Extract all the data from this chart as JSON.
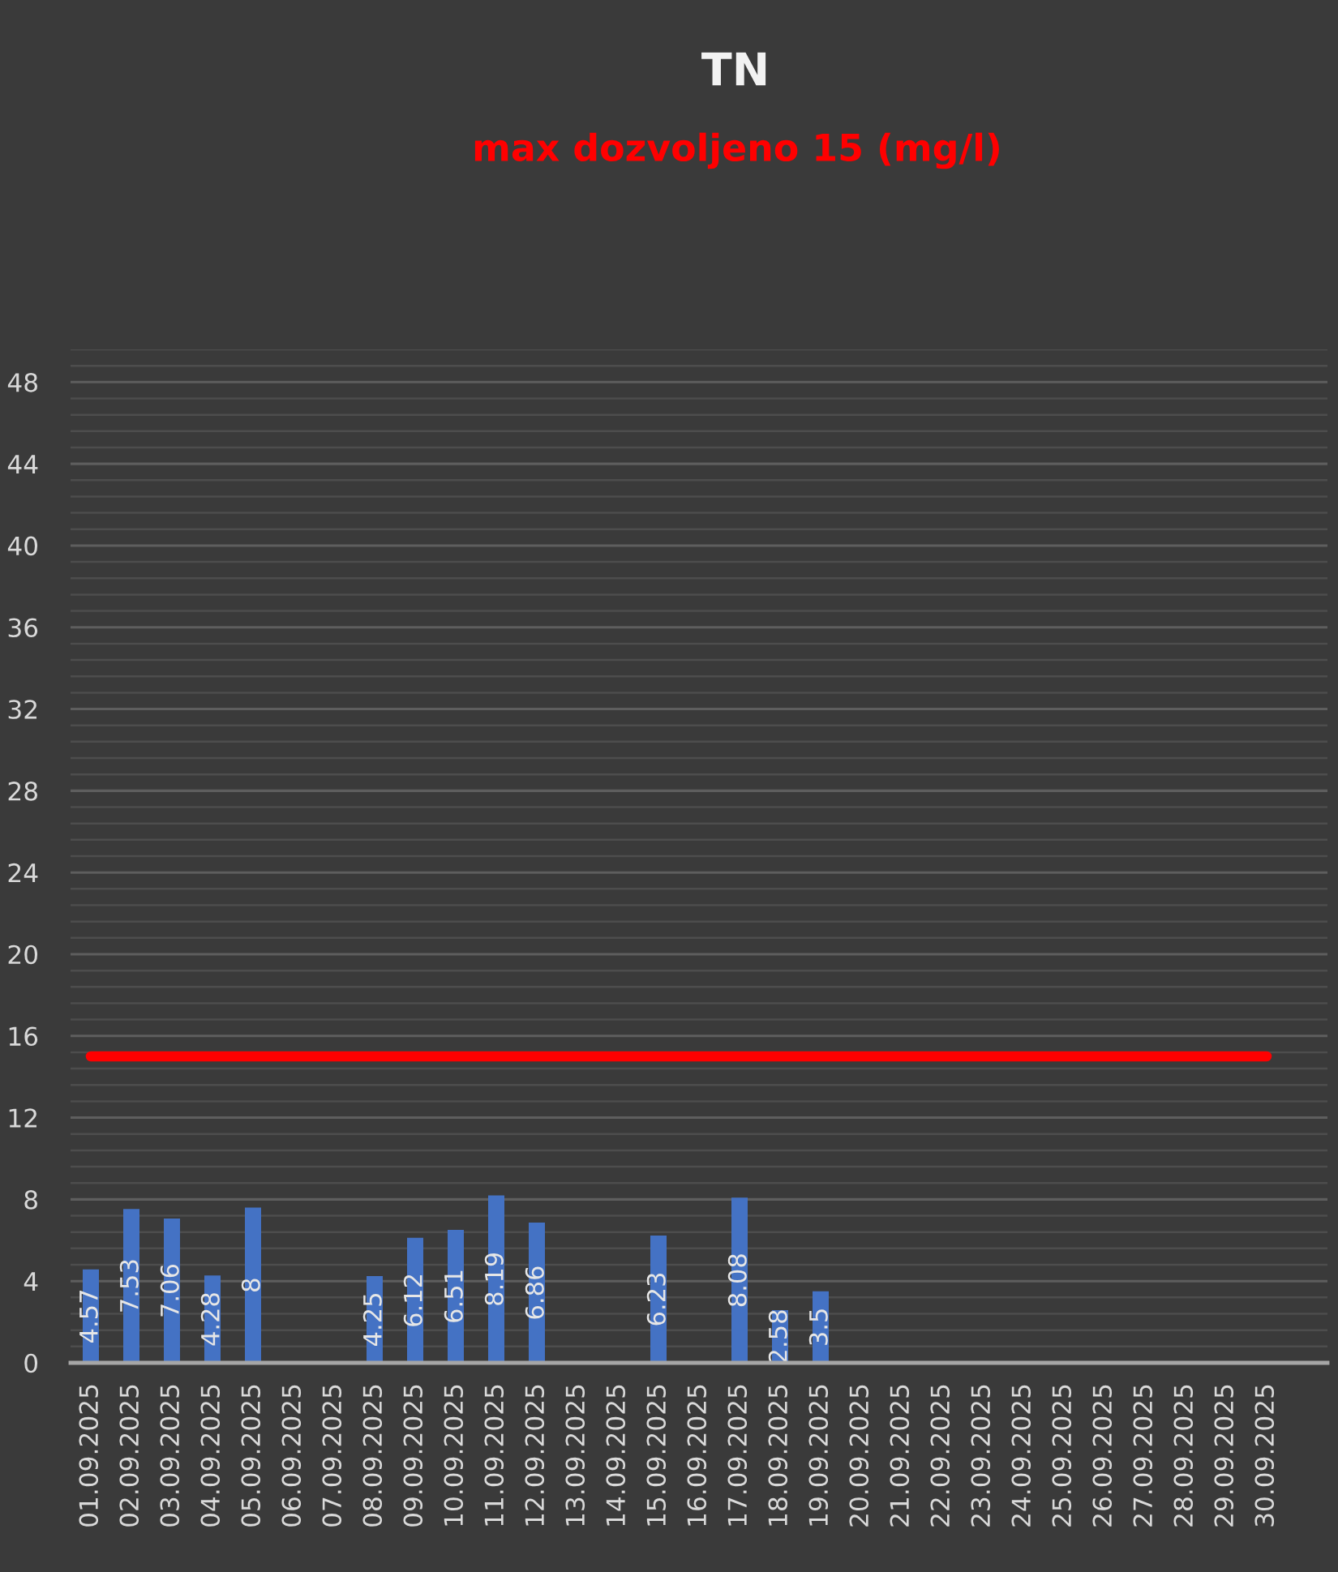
{
  "chart_data": {
    "type": "bar",
    "title": "TN",
    "subtitle": "max dozvoljeno 15 (mg/l)",
    "categories": [
      "01.09.2025",
      "02.09.2025",
      "03.09.2025",
      "04.09.2025",
      "05.09.2025",
      "06.09.2025",
      "07.09.2025",
      "08.09.2025",
      "09.09.2025",
      "10.09.2025",
      "11.09.2025",
      "12.09.2025",
      "13.09.2025",
      "14.09.2025",
      "15.09.2025",
      "16.09.2025",
      "17.09.2025",
      "18.09.2025",
      "19.09.2025",
      "20.09.2025",
      "21.09.2025",
      "22.09.2025",
      "23.09.2025",
      "24.09.2025",
      "25.09.2025",
      "26.09.2025",
      "27.09.2025",
      "28.09.2025",
      "29.09.2025",
      "30.09.2025",
      null
    ],
    "series": [
      {
        "color": "#4472c4",
        "values": [
          4.57,
          7.53,
          7.06,
          4.28,
          7.6,
          null,
          null,
          4.25,
          6.12,
          6.51,
          8.19,
          6.86,
          null,
          null,
          6.23,
          null,
          8.08,
          2.58,
          3.5,
          null,
          null,
          null,
          null,
          null,
          null,
          null,
          null,
          null,
          null,
          null,
          null
        ],
        "value_labels": [
          "4.57",
          "7.53",
          "7.06",
          "4.28",
          "8",
          null,
          null,
          "4.25",
          "6.12",
          "6.51",
          "8.19",
          "6.86",
          null,
          null,
          "6.23",
          null,
          "8.08",
          "2.58",
          "3.5",
          null,
          null,
          null,
          null,
          null,
          null,
          null,
          null,
          null,
          null,
          null,
          null
        ]
      },
      {
        "type": "line",
        "color": "#ff0000",
        "line_style": "solid",
        "marker": "none",
        "values": [
          15,
          15,
          15,
          15,
          15,
          15,
          15,
          15,
          15,
          15,
          15,
          15,
          15,
          15,
          15,
          15,
          15,
          15,
          15,
          15,
          15,
          15,
          15,
          15,
          15,
          15,
          15,
          15,
          15,
          15,
          null
        ]
      }
    ],
    "ylim": [
      0,
      49.6
    ],
    "yticks": [
      0,
      {
        "value": 0.8,
        "label": null
      },
      {
        "value": 1.6,
        "label": null
      },
      {
        "value": 2.4,
        "label": null
      },
      {
        "value": 3.2,
        "label": null
      },
      4,
      {
        "value": 4.8,
        "label": null
      },
      {
        "value": 5.6,
        "label": null
      },
      {
        "value": 6.4,
        "label": null
      },
      {
        "value": 7.2,
        "label": null
      },
      8,
      {
        "value": 8.8,
        "label": null
      },
      {
        "value": 9.6,
        "label": null
      },
      {
        "value": 10.4,
        "label": null
      },
      {
        "value": 11.2,
        "label": null
      },
      12,
      {
        "value": 12.8,
        "label": null
      },
      {
        "value": 13.6,
        "label": null
      },
      {
        "value": 14.4,
        "label": null
      },
      {
        "value": 15.2,
        "label": null
      },
      16,
      {
        "value": 16.8,
        "label": null
      },
      {
        "value": 17.6,
        "label": null
      },
      {
        "value": 18.4,
        "label": null
      },
      {
        "value": 19.2,
        "label": null
      },
      20,
      {
        "value": 20.8,
        "label": null
      },
      {
        "value": 21.6,
        "label": null
      },
      {
        "value": 22.4,
        "label": null
      },
      {
        "value": 23.2,
        "label": null
      },
      24,
      {
        "value": 24.8,
        "label": null
      },
      {
        "value": 25.6,
        "label": null
      },
      {
        "value": 26.4,
        "label": null
      },
      {
        "value": 27.2,
        "label": null
      },
      28,
      {
        "value": 28.8,
        "label": null
      },
      {
        "value": 29.6,
        "label": null
      },
      {
        "value": 30.4,
        "label": null
      },
      {
        "value": 31.2,
        "label": null
      },
      32,
      {
        "value": 32.8,
        "label": null
      },
      {
        "value": 33.6,
        "label": null
      },
      {
        "value": 34.4,
        "label": null
      },
      {
        "value": 35.2,
        "label": null
      },
      36,
      {
        "value": 36.8,
        "label": null
      },
      {
        "value": 37.6,
        "label": null
      },
      {
        "value": 38.4,
        "label": null
      },
      {
        "value": 39.2,
        "label": null
      },
      40,
      {
        "value": 40.8,
        "label": null
      },
      {
        "value": 41.6,
        "label": null
      },
      {
        "value": 42.4,
        "label": null
      },
      {
        "value": 43.2,
        "label": null
      },
      44,
      {
        "value": 44.8,
        "label": null
      },
      {
        "value": 45.6,
        "label": null
      },
      {
        "value": 46.4,
        "label": null
      },
      {
        "value": 47.2,
        "label": null
      },
      48,
      {
        "value": 48.8,
        "label": null
      },
      {
        "value": 49.6,
        "label": null
      }
    ],
    "grid": "y"
  }
}
